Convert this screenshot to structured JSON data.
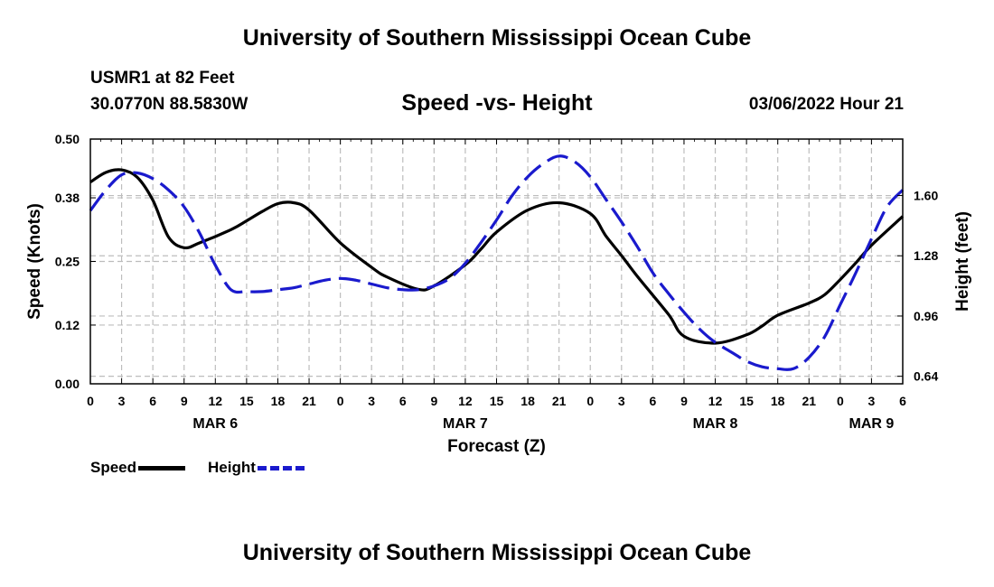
{
  "header": {
    "title": "University of Southern Mississippi Ocean Cube",
    "station": "USMR1 at 82 Feet",
    "coords": "30.0770N  88.5830W",
    "subtitle": "Speed -vs- Height",
    "timestamp": "03/06/2022 Hour 21"
  },
  "footer": {
    "title": "University of Southern Mississippi Ocean Cube"
  },
  "legend": {
    "speed": "Speed",
    "height": "Height"
  },
  "colors": {
    "speed": "#000000",
    "height": "#1a1acd",
    "grid": "#bdbdbd"
  },
  "chart_data": {
    "type": "line",
    "title": "Speed -vs- Height",
    "xlabel": "Forecast (Z)",
    "ylabel": "Speed (Knots)",
    "y2label": "Height (feet)",
    "x_range": [
      0,
      78
    ],
    "x_ticks": [
      0,
      3,
      6,
      9,
      12,
      15,
      18,
      21,
      24,
      27,
      30,
      33,
      36,
      39,
      42,
      45,
      48,
      51,
      54,
      57,
      60,
      63,
      66,
      69,
      72,
      75,
      78
    ],
    "x_tick_labels": [
      "0",
      "3",
      "6",
      "9",
      "12",
      "15",
      "18",
      "21",
      "0",
      "3",
      "6",
      "9",
      "12",
      "15",
      "18",
      "21",
      "0",
      "3",
      "6",
      "9",
      "12",
      "15",
      "18",
      "21",
      "0",
      "3",
      "6"
    ],
    "day_labels": [
      {
        "x": 12,
        "label": "MAR 6"
      },
      {
        "x": 36,
        "label": "MAR 7"
      },
      {
        "x": 60,
        "label": "MAR 8"
      },
      {
        "x": 75,
        "label": "MAR 9"
      }
    ],
    "ylim": [
      0,
      0.5
    ],
    "y_ticks": [
      0.0,
      0.12,
      0.25,
      0.38,
      0.5
    ],
    "y_tick_labels": [
      "0.00",
      "0.12",
      "0.25",
      "0.38",
      "0.50"
    ],
    "y2lim": [
      0.6,
      1.9
    ],
    "y2_ticks": [
      0.64,
      0.96,
      1.28,
      1.6
    ],
    "y2_tick_labels": [
      "0.64",
      "0.96",
      "1.28",
      "1.60"
    ],
    "series": [
      {
        "name": "Speed",
        "axis": "left",
        "style": "solid",
        "x": [
          0,
          1.5,
          3,
          4.5,
          6,
          7.5,
          9,
          10.5,
          13.5,
          15,
          16.5,
          18,
          19.5,
          21,
          24,
          27,
          28.5,
          31.5,
          33,
          36,
          37.5,
          39,
          42,
          45,
          48,
          49.5,
          51,
          52.5,
          55.5,
          57,
          60,
          63,
          64.5,
          66,
          69,
          70.5,
          72,
          73.5,
          75,
          78
        ],
        "values": [
          0.412,
          0.432,
          0.437,
          0.422,
          0.375,
          0.3,
          0.278,
          0.288,
          0.315,
          0.333,
          0.352,
          0.368,
          0.37,
          0.355,
          0.288,
          0.238,
          0.218,
          0.193,
          0.2,
          0.243,
          0.275,
          0.31,
          0.355,
          0.37,
          0.348,
          0.302,
          0.262,
          0.22,
          0.142,
          0.097,
          0.083,
          0.1,
          0.118,
          0.14,
          0.165,
          0.182,
          0.213,
          0.247,
          0.283,
          0.342
        ]
      },
      {
        "name": "Height",
        "axis": "right",
        "style": "dashed",
        "x": [
          0,
          1.5,
          3,
          4.5,
          6,
          7.5,
          9,
          10.5,
          12,
          13.5,
          15,
          16.5,
          18,
          19.5,
          21,
          22.5,
          24,
          25.5,
          27,
          28.5,
          30,
          31.5,
          33,
          34.5,
          36,
          37.5,
          39,
          40.5,
          42,
          43.5,
          45,
          46.5,
          48,
          49.5,
          51,
          52.5,
          54,
          55.5,
          57,
          58.5,
          60,
          61.5,
          63,
          64.5,
          66,
          67.5,
          69,
          70.5,
          72,
          73.5,
          75,
          76.5,
          78
        ],
        "values": [
          1.52,
          1.63,
          1.71,
          1.72,
          1.69,
          1.63,
          1.54,
          1.4,
          1.23,
          1.1,
          1.09,
          1.09,
          1.1,
          1.11,
          1.13,
          1.15,
          1.16,
          1.15,
          1.13,
          1.11,
          1.1,
          1.1,
          1.12,
          1.16,
          1.24,
          1.35,
          1.47,
          1.6,
          1.7,
          1.77,
          1.81,
          1.78,
          1.7,
          1.58,
          1.46,
          1.33,
          1.19,
          1.08,
          0.98,
          0.89,
          0.82,
          0.77,
          0.72,
          0.69,
          0.68,
          0.68,
          0.74,
          0.85,
          1.02,
          1.19,
          1.37,
          1.54,
          1.63
        ]
      }
    ]
  }
}
